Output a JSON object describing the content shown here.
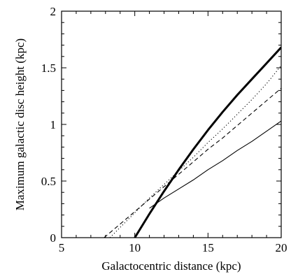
{
  "chart_data": {
    "type": "line",
    "title": "",
    "xlabel": "Galactocentric distance (kpc)",
    "ylabel": "Maximum galactic disc height (kpc)",
    "xlim": [
      5,
      20
    ],
    "ylim": [
      0,
      2
    ],
    "xticks": [
      5,
      10,
      15,
      20
    ],
    "yticks": [
      0,
      0.5,
      1,
      1.5,
      2
    ],
    "xtick_labels": [
      "5",
      "10",
      "15",
      "20"
    ],
    "ytick_labels": [
      "0",
      "0.5",
      "1",
      "1.5",
      "2"
    ],
    "grid": false,
    "legend": "none",
    "series": [
      {
        "style": "solid-thin",
        "x": [
          11.0,
          12.0,
          13.0,
          14.0,
          15.0,
          16.0,
          17.0,
          18.0,
          19.0,
          20.0
        ],
        "y": [
          0.26,
          0.35,
          0.43,
          0.51,
          0.6,
          0.68,
          0.77,
          0.85,
          0.94,
          1.03
        ]
      },
      {
        "style": "dashed",
        "x": [
          7.9,
          9.0,
          10.0,
          11.0,
          12.0,
          13.0,
          14.0,
          15.0,
          16.0,
          17.0,
          18.0,
          19.0,
          20.0
        ],
        "y": [
          0.0,
          0.12,
          0.23,
          0.34,
          0.45,
          0.56,
          0.67,
          0.78,
          0.88,
          0.99,
          1.1,
          1.21,
          1.32
        ]
      },
      {
        "style": "dotted",
        "x": [
          8.3,
          9.0,
          10.0,
          11.0,
          12.0,
          13.0,
          14.0,
          15.0,
          16.0,
          17.0,
          18.0,
          19.0,
          20.0
        ],
        "y": [
          0.0,
          0.09,
          0.22,
          0.35,
          0.47,
          0.59,
          0.71,
          0.84,
          0.96,
          1.09,
          1.22,
          1.36,
          1.52
        ]
      },
      {
        "style": "solid-thick",
        "x": [
          10.0,
          11.0,
          12.0,
          13.0,
          14.0,
          15.0,
          16.0,
          17.0,
          18.0,
          19.0,
          20.0
        ],
        "y": [
          0.0,
          0.21,
          0.41,
          0.6,
          0.78,
          0.95,
          1.11,
          1.26,
          1.4,
          1.54,
          1.68
        ]
      }
    ]
  }
}
